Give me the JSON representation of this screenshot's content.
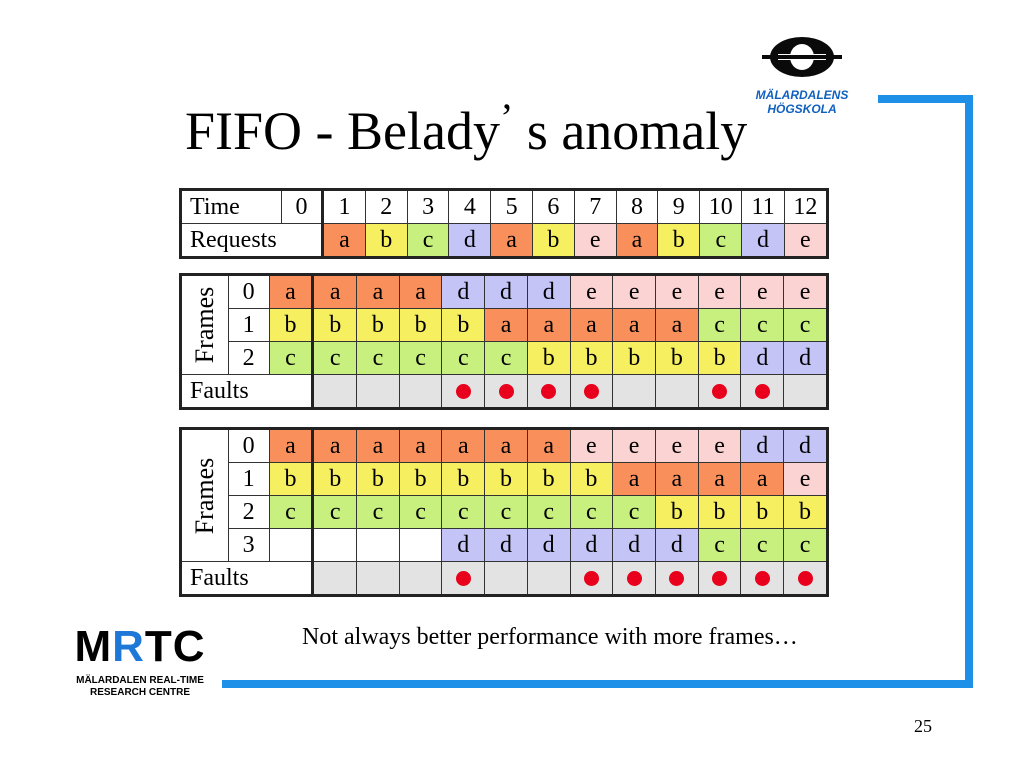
{
  "slide": {
    "title_main": "FIFO - Belady",
    "title_apos": "’",
    "title_end": " s anomaly",
    "note": "Not always better performance with more frames…",
    "page_number": "25",
    "accent_color": "#1e90e8"
  },
  "logos": {
    "university": "MÄLARDALENS HÖGSKOLA",
    "mrtc_word": [
      "M",
      "R",
      "T",
      "C"
    ],
    "mrtc_line1": "MÄLARDALEN REAL-TIME",
    "mrtc_line2": "RESEARCH CENTRE"
  },
  "request_table": {
    "time_label": "Time",
    "requests_label": "Requests",
    "times": [
      "0",
      "1",
      "2",
      "3",
      "4",
      "5",
      "6",
      "7",
      "8",
      "9",
      "10",
      "11",
      "12"
    ],
    "requests": [
      "a",
      "b",
      "c",
      "d",
      "a",
      "b",
      "e",
      "a",
      "b",
      "c",
      "d",
      "e"
    ]
  },
  "three_frames": {
    "frames_label": "Frames",
    "faults_label": "Faults",
    "rows": [
      {
        "frame": "0",
        "cells": [
          "a",
          "a",
          "a",
          "a",
          "d",
          "d",
          "d",
          "e",
          "e",
          "e",
          "e",
          "e",
          "e"
        ]
      },
      {
        "frame": "1",
        "cells": [
          "b",
          "b",
          "b",
          "b",
          "b",
          "a",
          "a",
          "a",
          "a",
          "a",
          "c",
          "c",
          "c"
        ]
      },
      {
        "frame": "2",
        "cells": [
          "c",
          "c",
          "c",
          "c",
          "c",
          "c",
          "b",
          "b",
          "b",
          "b",
          "b",
          "d",
          "d"
        ]
      }
    ],
    "faults": [
      false,
      false,
      false,
      true,
      true,
      true,
      true,
      false,
      false,
      true,
      true,
      false
    ]
  },
  "four_frames": {
    "frames_label": "Frames",
    "faults_label": "Faults",
    "rows": [
      {
        "frame": "0",
        "cells": [
          "a",
          "a",
          "a",
          "a",
          "a",
          "a",
          "a",
          "e",
          "e",
          "e",
          "e",
          "d",
          "d"
        ]
      },
      {
        "frame": "1",
        "cells": [
          "b",
          "b",
          "b",
          "b",
          "b",
          "b",
          "b",
          "b",
          "a",
          "a",
          "a",
          "a",
          "e"
        ]
      },
      {
        "frame": "2",
        "cells": [
          "c",
          "c",
          "c",
          "c",
          "c",
          "c",
          "c",
          "c",
          "c",
          "b",
          "b",
          "b",
          "b"
        ]
      },
      {
        "frame": "3",
        "cells": [
          "",
          "",
          "",
          "",
          "d",
          "d",
          "d",
          "d",
          "d",
          "d",
          "c",
          "c",
          "c"
        ]
      }
    ],
    "faults": [
      false,
      false,
      false,
      true,
      false,
      false,
      true,
      true,
      true,
      true,
      true,
      true
    ]
  }
}
